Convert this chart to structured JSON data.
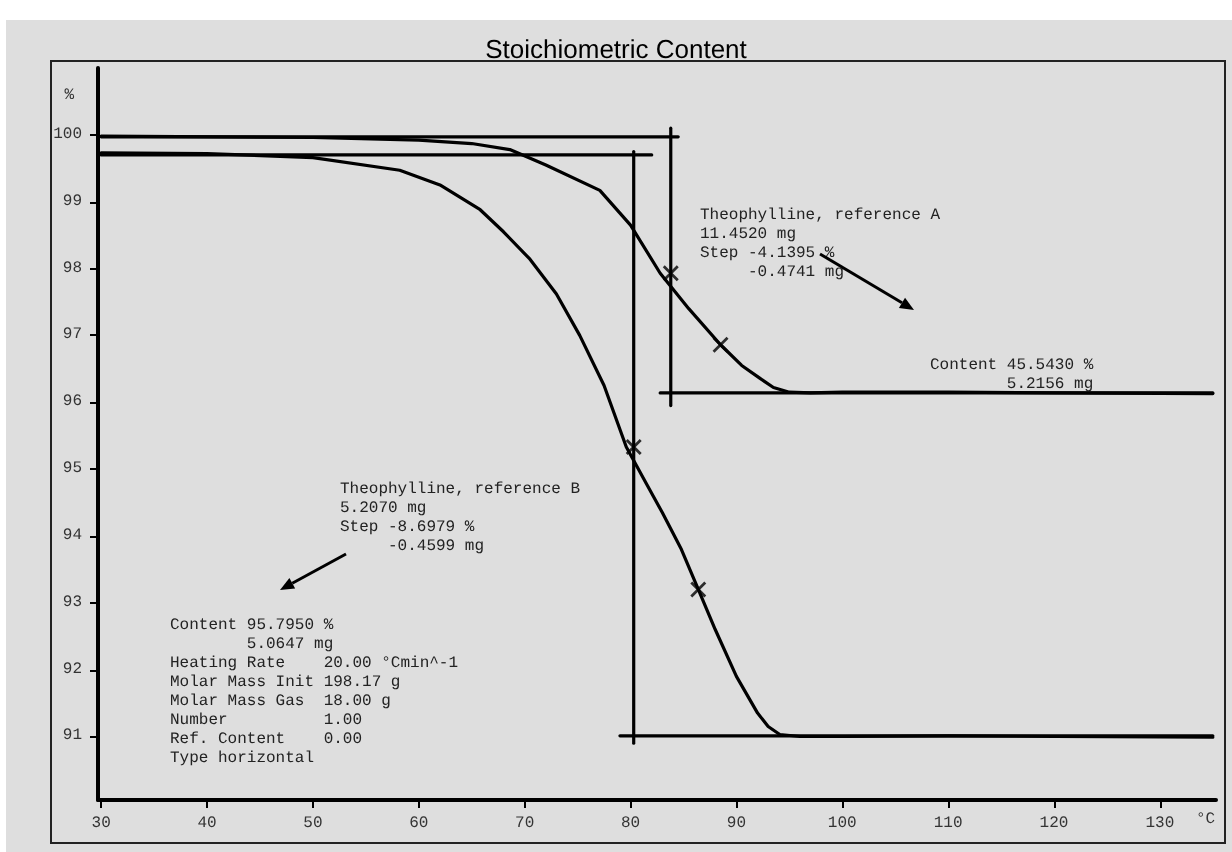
{
  "chart_data": {
    "type": "line",
    "title": "Stoichiometric Content",
    "xlabel": "°C",
    "ylabel": "%",
    "xlim": [
      29.7,
      135.3
    ],
    "xticks": [
      30,
      40,
      50,
      60,
      70,
      80,
      90,
      100,
      110,
      120,
      130
    ],
    "ylim": [
      90.05,
      101
    ],
    "yticks": [
      91,
      92,
      93,
      94,
      95,
      96,
      97,
      98,
      99,
      100
    ],
    "grid": false,
    "marker": "none",
    "line_style": "solid",
    "series": [
      {
        "color": "#000000",
        "x": [
          30,
          50,
          60,
          65,
          68.6,
          72,
          77.1,
          80,
          82.8,
          85.5,
          88.5,
          90.5,
          92.2,
          93.5,
          95,
          97,
          100,
          110,
          120,
          135
        ],
        "values": [
          99.98,
          99.96,
          99.92,
          99.87,
          99.78,
          99.55,
          99.17,
          98.65,
          97.93,
          97.4,
          96.86,
          96.55,
          96.36,
          96.22,
          96.15,
          96.14,
          96.15,
          96.15,
          96.14,
          96.13
        ]
      },
      {
        "color": "#000000",
        "x": [
          30,
          40,
          50,
          58.2,
          62,
          65.8,
          68,
          70.5,
          73,
          75.2,
          77.5,
          79.6,
          81.5,
          83,
          84.8,
          86.4,
          88,
          90,
          92,
          93,
          94.1,
          96,
          100,
          110,
          120,
          135
        ],
        "values": [
          99.73,
          99.72,
          99.66,
          99.47,
          99.25,
          98.88,
          98.55,
          98.14,
          97.62,
          97.0,
          96.25,
          95.33,
          94.78,
          94.35,
          93.8,
          93.2,
          92.6,
          91.9,
          91.35,
          91.15,
          91.03,
          91.0,
          91.0,
          91.01,
          91.0,
          90.99
        ]
      },
      {
        "color": "#000000",
        "x": [
          30,
          84.5
        ],
        "values": [
          99.97,
          99.97
        ]
      },
      {
        "color": "#000000",
        "x": [
          83.8,
          83.8
        ],
        "values": [
          100.1,
          95.95
        ]
      },
      {
        "color": "#000000",
        "x": [
          82.8,
          135
        ],
        "values": [
          96.14,
          96.14
        ]
      },
      {
        "color": "#000000",
        "x": [
          30,
          82
        ],
        "values": [
          99.7,
          99.7
        ]
      },
      {
        "color": "#000000",
        "x": [
          80.3,
          80.3
        ],
        "values": [
          99.75,
          90.9
        ]
      },
      {
        "color": "#000000",
        "x": [
          79,
          135
        ],
        "values": [
          91.01,
          91.01
        ]
      },
      {
        "type": "scatter",
        "marker": "cross",
        "color": "#000000",
        "x": [
          83.8,
          88.5,
          80.3,
          86.4
        ],
        "values": [
          97.93,
          96.86,
          95.33,
          93.2
        ]
      }
    ],
    "annotations": [
      "Theophylline, reference A\n11.4520 mg\nStep -4.1395 %\n     -0.4741 mg",
      "Content 45.5430 %\n        5.2156 mg",
      "Theophylline, reference B\n5.2070 mg\nStep -8.6979 %\n     -0.4599 mg",
      "Content 95.7950 %\n        5.0647 mg\nHeating Rate    20.00 °Cmin^-1\nMolar Mass Init 198.17 g\nMolar Mass Gas  18.00 g\nNumber          1.00\nRef. Content    0.00\nType horizontal"
    ]
  }
}
